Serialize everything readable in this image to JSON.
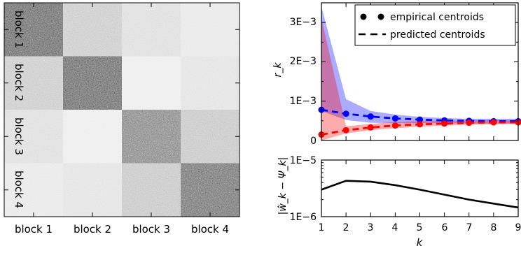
{
  "chart_data": [
    {
      "type": "heatmap",
      "x_tick_labels": [
        "block 1",
        "block 2",
        "block 3",
        "block 4"
      ],
      "y_tick_labels": [
        "block 1",
        "block 2",
        "block 3",
        "block 4"
      ],
      "block_density": [
        [
          0.62,
          0.22,
          0.14,
          0.1
        ],
        [
          0.22,
          0.62,
          0.08,
          0.12
        ],
        [
          0.14,
          0.08,
          0.5,
          0.24
        ],
        [
          0.1,
          0.12,
          0.24,
          0.58
        ]
      ],
      "colors": {
        "low": "#ffffff",
        "high": "#000000"
      }
    },
    {
      "type": "line",
      "ylabel": "r_k",
      "x": [
        1,
        2,
        3,
        4,
        5,
        6,
        7,
        8,
        9
      ],
      "xlim": [
        1,
        9
      ],
      "ylim": [
        0,
        0.0035
      ],
      "y_ticks": [
        {
          "value": 0.003,
          "label": "3E−3"
        },
        {
          "value": 0.002,
          "label": "2E−3"
        },
        {
          "value": 0.001,
          "label": "1E−3"
        },
        {
          "value": 0,
          "label": "0"
        }
      ],
      "legend": {
        "position": "top-right",
        "entries": [
          {
            "label": "empirical centroids",
            "style": "dots"
          },
          {
            "label": "predicted centroids",
            "style": "dashed"
          }
        ]
      },
      "series": [
        {
          "color": "#0000ff",
          "empirical": [
            0.00078,
            0.00068,
            0.00061,
            0.00056,
            0.00053,
            0.00051,
            0.0005,
            0.00049,
            0.00049
          ],
          "predicted": [
            0.00078,
            0.00068,
            0.00061,
            0.00056,
            0.00053,
            0.00051,
            0.0005,
            0.00049,
            0.00049
          ],
          "band_lower": [
            0.00075,
            0.00052,
            0.00045,
            0.00044,
            0.00044,
            0.00044,
            0.00043,
            0.00043,
            0.00043
          ],
          "band_upper": [
            0.0034,
            0.00105,
            0.00075,
            0.00066,
            0.0006,
            0.00057,
            0.00055,
            0.00055,
            0.00055
          ]
        },
        {
          "color": "#ff0000",
          "empirical": [
            0.00015,
            0.00026,
            0.00033,
            0.00038,
            0.00041,
            0.00043,
            0.00045,
            0.00046,
            0.00046
          ],
          "predicted": [
            0.00015,
            0.00026,
            0.00033,
            0.00038,
            0.00041,
            0.00043,
            0.00045,
            0.00046,
            0.00046
          ],
          "band_lower": [
            0.0,
            0.00018,
            0.00026,
            0.00031,
            0.00035,
            0.00038,
            0.0004,
            0.00041,
            0.00042
          ],
          "band_upper": [
            0.0031,
            0.00036,
            0.00042,
            0.00047,
            0.00049,
            0.0005,
            0.00051,
            0.00052,
            0.00052
          ]
        }
      ]
    },
    {
      "type": "line",
      "xlabel": "k",
      "ylabel": "|ŵ_k − Ψ_k|",
      "x": [
        1,
        2,
        3,
        4,
        5,
        6,
        7,
        8,
        9
      ],
      "x_tick_labels": [
        "1",
        "2",
        "3",
        "4",
        "5",
        "6",
        "7",
        "8",
        "9"
      ],
      "xlim": [
        1,
        9
      ],
      "ylim": [
        1e-06,
        1e-05
      ],
      "yscale": "log",
      "y_ticks": [
        {
          "value": 1e-05,
          "label": "1E−5"
        },
        {
          "value": 1e-06,
          "label": "1E−6"
        }
      ],
      "series": [
        {
          "color": "#000000",
          "values": [
            3e-06,
            4.3e-06,
            4.15e-06,
            3.6e-06,
            3e-06,
            2.45e-06,
            2e-06,
            1.7e-06,
            1.45e-06
          ]
        }
      ]
    }
  ]
}
